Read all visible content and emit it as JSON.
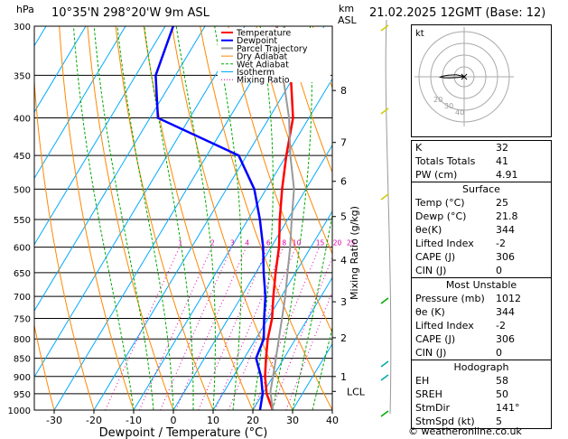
{
  "header": {
    "hpa_label": "hPa",
    "location": "10°35'N  298°20'W  9m  ASL",
    "km_label": "km",
    "asl_label": "ASL",
    "datetime": "21.02.2025  12GMT  (Base: 12)"
  },
  "footer": {
    "credit": "© weatheronline.co.uk"
  },
  "colors": {
    "temperature": "#ff0000",
    "dewpoint": "#0000ff",
    "parcel": "#999999",
    "dry_adiabat": "#ff8800",
    "wet_adiabat": "#00aa00",
    "isotherm": "#00aaff",
    "mixing_ratio": "#dd00aa"
  },
  "chart_data": {
    "type": "line",
    "xlabel": "Dewpoint / Temperature (°C)",
    "ylabel_right": "Mixing Ratio (g/kg)",
    "xlim": [
      -35,
      40
    ],
    "ylim": [
      1000,
      300
    ],
    "y_scale": "log",
    "x_ticks": [
      "-30",
      "-20",
      "-10",
      "0",
      "10",
      "20",
      "30",
      "40"
    ],
    "p_ticks": [
      "300",
      "350",
      "400",
      "450",
      "500",
      "550",
      "600",
      "650",
      "700",
      "750",
      "800",
      "850",
      "900",
      "950",
      "1000"
    ],
    "km_ticks": [
      {
        "label": "8",
        "p": 367
      },
      {
        "label": "7",
        "p": 432
      },
      {
        "label": "6",
        "p": 488
      },
      {
        "label": "5",
        "p": 545
      },
      {
        "label": "4",
        "p": 625
      },
      {
        "label": "3",
        "p": 712
      },
      {
        "label": "2",
        "p": 797
      },
      {
        "label": "1",
        "p": 900
      },
      {
        "label": "LCL",
        "p": 943
      }
    ],
    "mixing_ratio_labels": [
      "1",
      "2",
      "3",
      "4",
      "6",
      "8",
      "10",
      "15",
      "20",
      "25"
    ],
    "legend": [
      "Temperature",
      "Dewpoint",
      "Parcel Trajectory",
      "Dry Adiabat",
      "Wet Adiabat",
      "Isotherm",
      "Mixing Ratio"
    ],
    "series": [
      {
        "name": "Temperature",
        "points": [
          [
            1000,
            25
          ],
          [
            950,
            21
          ],
          [
            900,
            18
          ],
          [
            850,
            15.5
          ],
          [
            800,
            13
          ],
          [
            750,
            11
          ],
          [
            700,
            8
          ],
          [
            650,
            5
          ],
          [
            600,
            2
          ],
          [
            550,
            -2
          ],
          [
            500,
            -6
          ],
          [
            450,
            -10
          ],
          [
            400,
            -14
          ],
          [
            350,
            -21
          ],
          [
            300,
            -32
          ]
        ]
      },
      {
        "name": "Dewpoint",
        "points": [
          [
            1000,
            21.8
          ],
          [
            950,
            20
          ],
          [
            900,
            17
          ],
          [
            850,
            13
          ],
          [
            800,
            12
          ],
          [
            750,
            9
          ],
          [
            700,
            6
          ],
          [
            650,
            2
          ],
          [
            600,
            -2
          ],
          [
            550,
            -7
          ],
          [
            500,
            -13
          ],
          [
            450,
            -22
          ],
          [
            400,
            -48
          ],
          [
            350,
            -55
          ],
          [
            300,
            -58
          ]
        ]
      },
      {
        "name": "Parcel Trajectory",
        "points": [
          [
            1000,
            25
          ],
          [
            943,
            21.6
          ],
          [
            900,
            20
          ],
          [
            850,
            18
          ],
          [
            800,
            15.8
          ],
          [
            750,
            13.5
          ],
          [
            700,
            11
          ],
          [
            650,
            8
          ],
          [
            600,
            4.8
          ],
          [
            550,
            1
          ],
          [
            500,
            -3
          ],
          [
            450,
            -9
          ],
          [
            400,
            -15
          ],
          [
            350,
            -23
          ],
          [
            300,
            -32
          ]
        ]
      }
    ]
  },
  "hodograph": {
    "label": "kt",
    "rings": [
      "40",
      "30",
      "20"
    ],
    "hodo_points": [
      [
        0,
        0
      ],
      [
        -1.5,
        -0.5
      ],
      [
        -4,
        -1
      ],
      [
        -8,
        -0.8
      ],
      [
        -11,
        -0.3
      ],
      [
        -12,
        0.2
      ],
      [
        -10,
        0.5
      ],
      [
        -7,
        0.6
      ],
      [
        -3,
        0.3
      ],
      [
        0,
        0
      ]
    ]
  },
  "indices": [
    {
      "k": "K",
      "v": "32"
    },
    {
      "k": "Totals Totals",
      "v": "41"
    },
    {
      "k": "PW (cm)",
      "v": "4.91"
    }
  ],
  "surface": {
    "title": "Surface",
    "rows": [
      {
        "k": "Temp (°C)",
        "v": "25"
      },
      {
        "k": "Dewp (°C)",
        "v": "21.8"
      },
      {
        "k": "θe(K)",
        "v": "344"
      },
      {
        "k": "Lifted Index",
        "v": "-2"
      },
      {
        "k": "CAPE (J)",
        "v": "306"
      },
      {
        "k": "CIN (J)",
        "v": "0"
      }
    ]
  },
  "most_unstable": {
    "title": "Most Unstable",
    "rows": [
      {
        "k": "Pressure (mb)",
        "v": "1012"
      },
      {
        "k": "θe (K)",
        "v": "344"
      },
      {
        "k": "Lifted Index",
        "v": "-2"
      },
      {
        "k": "CAPE (J)",
        "v": "306"
      },
      {
        "k": "CIN (J)",
        "v": "0"
      }
    ]
  },
  "hodograph_table": {
    "title": "Hodograph",
    "rows": [
      {
        "k": "EH",
        "v": "58"
      },
      {
        "k": "SREH",
        "v": "50"
      },
      {
        "k": "StmDir",
        "v": "141°"
      },
      {
        "k": "StmSpd (kt)",
        "v": "5"
      }
    ]
  }
}
